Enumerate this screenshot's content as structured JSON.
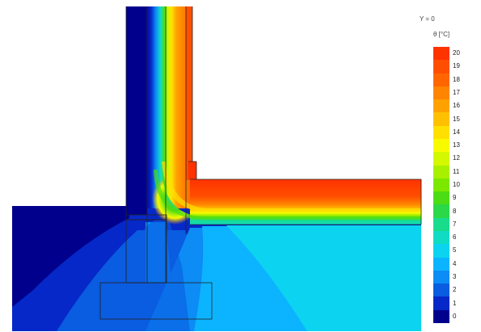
{
  "view": {
    "section_label": "Y = 0",
    "unit_label": "θ [°C]"
  },
  "legend": {
    "steps": [
      {
        "value": "20",
        "color": "#ff3300"
      },
      {
        "value": "19",
        "color": "#ff4e00"
      },
      {
        "value": "18",
        "color": "#ff6600"
      },
      {
        "value": "17",
        "color": "#ff8400"
      },
      {
        "value": "16",
        "color": "#ffa200"
      },
      {
        "value": "15",
        "color": "#ffc000"
      },
      {
        "value": "14",
        "color": "#ffe000"
      },
      {
        "value": "13",
        "color": "#f8fb00"
      },
      {
        "value": "12",
        "color": "#d4f800"
      },
      {
        "value": "11",
        "color": "#a8f000"
      },
      {
        "value": "10",
        "color": "#7ce800"
      },
      {
        "value": "9",
        "color": "#4cdc14"
      },
      {
        "value": "8",
        "color": "#2ad848"
      },
      {
        "value": "7",
        "color": "#18dc8c"
      },
      {
        "value": "6",
        "color": "#10dcc4"
      },
      {
        "value": "5",
        "color": "#0cd4f0"
      },
      {
        "value": "4",
        "color": "#0cb4ff"
      },
      {
        "value": "3",
        "color": "#0c8cf4"
      },
      {
        "value": "2",
        "color": "#0a5ce0"
      },
      {
        "value": "1",
        "color": "#0628c8"
      },
      {
        "value": "0",
        "color": "#00008c"
      }
    ]
  }
}
